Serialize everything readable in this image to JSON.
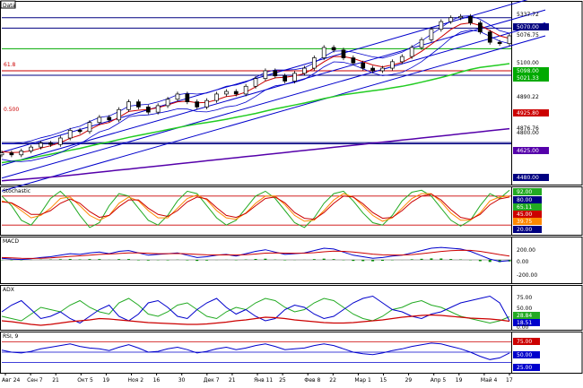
{
  "chart_data": [
    {
      "type": "line",
      "panel": "price",
      "label": "Data",
      "fib_labels": [
        "61.8",
        "0.500"
      ],
      "price_labels": [
        "5337.72",
        "5070.00",
        "5076.75",
        "5100.00",
        "5098.00",
        "5021.33",
        "4890.22",
        "4925.80",
        "4876.76",
        "4800.00",
        "4625.00",
        "4480.00"
      ],
      "series": [
        {
          "name": "close",
          "values": [
            4245,
            4230,
            4260,
            4290,
            4320,
            4310,
            4360,
            4420,
            4410,
            4480,
            4520,
            4500,
            4580,
            4640,
            4600,
            4560,
            4610,
            4660,
            4700,
            4640,
            4600,
            4650,
            4700,
            4720,
            4700,
            4760,
            4820,
            4880,
            4840,
            4800,
            4860,
            4900,
            4980,
            5060,
            5040,
            4980,
            4940,
            4900,
            4880,
            4900,
            4950,
            4990,
            5060,
            5120,
            5200,
            5260,
            5290,
            5300,
            5250,
            5180,
            5100,
            5090,
            5150
          ]
        },
        {
          "name": "ma_short",
          "values": [
            4255,
            4248,
            4250,
            4262,
            4282,
            4300,
            4325,
            4358,
            4382,
            4425,
            4463,
            4480,
            4520,
            4565,
            4575,
            4580,
            4595,
            4615,
            4640,
            4645,
            4632,
            4635,
            4655,
            4680,
            4690,
            4715,
            4755,
            4800,
            4825,
            4830,
            4840,
            4858,
            4900,
            4950,
            4990,
            4990,
            4975,
            4950,
            4925,
            4910,
            4925,
            4945,
            4985,
            5030,
            5085,
            5140,
            5200,
            5240,
            5250,
            5230,
            5190,
            5150,
            5130
          ]
        },
        {
          "name": "ma_long",
          "values": [
            4170,
            4180,
            4190,
            4205,
            4220,
            4235,
            4250,
            4265,
            4280,
            4298,
            4315,
            4330,
            4348,
            4365,
            4380,
            4395,
            4410,
            4425,
            4440,
            4455,
            4468,
            4480,
            4492,
            4505,
            4520,
            4535,
            4550,
            4568,
            4585,
            4600,
            4615,
            4630,
            4648,
            4665,
            4680,
            4695,
            4705,
            4715,
            4725,
            4735,
            4748,
            4760,
            4775,
            4792,
            4810,
            4828,
            4848,
            4870,
            4890,
            4905,
            4915,
            4925,
            4935
          ]
        },
        {
          "name": "ma_200",
          "values": [
            4030,
            4035,
            4040,
            4046,
            4052,
            4058,
            4065,
            4072,
            4080,
            4088,
            4096,
            4104,
            4112,
            4120,
            4128,
            4136,
            4144,
            4152,
            4160,
            4168,
            4176,
            4184,
            4192,
            4200,
            4208,
            4216,
            4224,
            4232,
            4240,
            4248,
            4256,
            4264,
            4272,
            4280,
            4288,
            4296,
            4304,
            4312,
            4320,
            4328,
            4336,
            4344,
            4352,
            4360,
            4368,
            4376,
            4384,
            4392,
            4400,
            4408,
            4416,
            4424,
            4432
          ]
        }
      ]
    },
    {
      "type": "line",
      "panel": "stochastic",
      "label": "Stochastic",
      "right_labels": [
        "92.00",
        "80.00",
        "65.11",
        "45.00",
        "39.75",
        "20.00"
      ],
      "series": [
        {
          "name": "%K",
          "values": [
            80,
            60,
            30,
            20,
            45,
            75,
            90,
            70,
            40,
            15,
            25,
            60,
            85,
            80,
            55,
            30,
            20,
            40,
            70,
            90,
            85,
            60,
            35,
            20,
            30,
            55,
            80,
            90,
            75,
            50,
            25,
            15,
            35,
            65,
            85,
            90,
            70,
            45,
            25,
            20,
            40,
            70,
            88,
            92,
            80,
            55,
            30,
            18,
            30,
            60,
            85,
            75,
            92
          ]
        },
        {
          "name": "%D",
          "values": [
            70,
            65,
            50,
            35,
            40,
            55,
            75,
            78,
            60,
            40,
            30,
            40,
            65,
            78,
            70,
            50,
            35,
            35,
            55,
            75,
            82,
            72,
            50,
            35,
            32,
            45,
            65,
            80,
            80,
            62,
            40,
            28,
            30,
            50,
            72,
            85,
            78,
            60,
            40,
            28,
            35,
            55,
            75,
            85,
            85,
            68,
            45,
            30,
            30,
            45,
            70,
            78,
            80
          ]
        },
        {
          "name": "%D slow",
          "values": [
            68,
            66,
            55,
            42,
            42,
            50,
            65,
            74,
            65,
            48,
            36,
            40,
            58,
            72,
            72,
            55,
            42,
            38,
            50,
            68,
            78,
            74,
            56,
            40,
            36,
            44,
            60,
            75,
            78,
            66,
            46,
            34,
            32,
            46,
            65,
            80,
            78,
            64,
            46,
            34,
            36,
            50,
            68,
            80,
            84,
            72,
            52,
            36,
            32,
            42,
            62,
            74,
            78
          ]
        }
      ]
    },
    {
      "type": "line",
      "panel": "macd",
      "label": "MACD",
      "right_labels": [
        "200.00",
        "0.00",
        "-200.00"
      ],
      "series": [
        {
          "name": "macd",
          "values": [
            20,
            10,
            5,
            15,
            30,
            40,
            60,
            80,
            70,
            90,
            100,
            80,
            110,
            120,
            90,
            60,
            70,
            80,
            90,
            60,
            30,
            40,
            60,
            70,
            50,
            80,
            110,
            130,
            100,
            70,
            80,
            90,
            120,
            150,
            140,
            100,
            60,
            40,
            20,
            30,
            50,
            60,
            90,
            120,
            150,
            160,
            150,
            140,
            110,
            60,
            10,
            -20,
            -10
          ]
        },
        {
          "name": "signal",
          "values": [
            30,
            25,
            20,
            18,
            20,
            25,
            35,
            45,
            52,
            60,
            70,
            75,
            82,
            90,
            90,
            85,
            80,
            80,
            82,
            78,
            70,
            65,
            64,
            65,
            62,
            66,
            75,
            86,
            90,
            86,
            85,
            86,
            92,
            104,
            112,
            110,
            100,
            88,
            74,
            65,
            62,
            62,
            68,
            80,
            94,
            108,
            118,
            124,
            122,
            110,
            90,
            68,
            50
          ]
        },
        {
          "name": "histogram",
          "values": [
            -10,
            -15,
            -15,
            -3,
            10,
            15,
            25,
            35,
            18,
            30,
            30,
            5,
            28,
            30,
            0,
            -25,
            -10,
            0,
            8,
            -18,
            -40,
            -25,
            -4,
            5,
            -12,
            14,
            35,
            44,
            10,
            -16,
            -5,
            4,
            28,
            46,
            28,
            -10,
            -40,
            -48,
            -54,
            -35,
            -12,
            -2,
            22,
            40,
            56,
            52,
            32,
            16,
            -12,
            -50,
            -80,
            -88,
            -60
          ]
        }
      ]
    },
    {
      "type": "line",
      "panel": "adx",
      "label": "ADX",
      "right_labels": [
        "75.00",
        "50.00",
        "28.84",
        "18.51",
        "0.00"
      ],
      "series": [
        {
          "name": "ADX",
          "values": [
            20,
            18,
            15,
            12,
            10,
            12,
            15,
            18,
            20,
            22,
            25,
            24,
            22,
            20,
            18,
            16,
            15,
            14,
            13,
            12,
            12,
            13,
            15,
            17,
            20,
            22,
            25,
            28,
            27,
            25,
            22,
            20,
            18,
            16,
            15,
            15,
            16,
            18,
            20,
            22,
            25,
            28,
            30,
            32,
            33,
            32,
            30,
            28,
            26,
            25,
            24,
            22,
            19
          ]
        },
        {
          "name": "+DI",
          "values": [
            30,
            25,
            20,
            35,
            50,
            45,
            40,
            55,
            65,
            50,
            40,
            35,
            60,
            70,
            55,
            35,
            30,
            40,
            55,
            60,
            45,
            30,
            25,
            40,
            50,
            45,
            60,
            70,
            65,
            50,
            40,
            45,
            60,
            70,
            65,
            50,
            35,
            25,
            20,
            30,
            45,
            50,
            60,
            65,
            55,
            50,
            40,
            30,
            25,
            20,
            15,
            20,
            29
          ]
        },
        {
          "name": "-DI",
          "values": [
            40,
            55,
            65,
            45,
            25,
            30,
            40,
            25,
            15,
            30,
            45,
            55,
            30,
            20,
            35,
            60,
            65,
            50,
            30,
            25,
            45,
            60,
            70,
            50,
            35,
            45,
            30,
            20,
            25,
            45,
            55,
            50,
            35,
            25,
            30,
            45,
            60,
            70,
            75,
            60,
            45,
            40,
            30,
            25,
            35,
            40,
            50,
            60,
            65,
            70,
            75,
            60,
            20
          ]
        }
      ]
    },
    {
      "type": "line",
      "panel": "rsi",
      "label": "RSI, 9",
      "right_labels": [
        "75.00",
        "50.00",
        "25.00"
      ],
      "series": [
        {
          "name": "RSI",
          "values": [
            55,
            50,
            48,
            52,
            58,
            62,
            66,
            70,
            64,
            60,
            58,
            54,
            62,
            68,
            60,
            50,
            52,
            58,
            62,
            56,
            48,
            52,
            58,
            62,
            56,
            60,
            66,
            70,
            64,
            56,
            58,
            60,
            66,
            70,
            66,
            58,
            50,
            46,
            44,
            48,
            54,
            58,
            64,
            68,
            72,
            70,
            64,
            58,
            50,
            40,
            32,
            36,
            48
          ]
        }
      ]
    }
  ],
  "x_axis": {
    "ticks": [
      "Авг 24",
      "Сен 7",
      "21",
      "Окт 5",
      "19",
      "Ноя 2",
      "16",
      "30",
      "Дек 7",
      "21",
      "Янв 11",
      "25",
      "Фев 8",
      "22",
      "Мар 1",
      "15",
      "29",
      "Апр 5",
      "19",
      "Май 4",
      "17"
    ]
  },
  "colors": {
    "close": "#000000",
    "ma_short": "#cc0000",
    "ma_long": "#22cc22",
    "ma_200": "#5500aa",
    "channel": "#0000cc",
    "d_line": "#ff8800",
    "grid": "#000080",
    "histogram": "#008800"
  }
}
